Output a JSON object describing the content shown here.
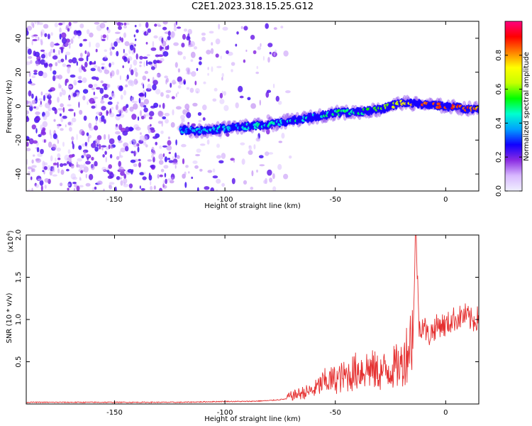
{
  "title": "C2E1.2023.318.15.25.G12",
  "chart_data": [
    {
      "type": "heatmap",
      "xlabel": "Height of straight line (km)",
      "ylabel": "Frequency (Hz)",
      "xlim": [
        -190,
        15
      ],
      "ylim": [
        -50,
        50
      ],
      "xticks": [
        -150,
        -100,
        -50,
        0
      ],
      "yticks": [
        -40,
        -20,
        0,
        20,
        40
      ],
      "colorbar": {
        "label": "Normalized spectral amplitude",
        "range": [
          0.0,
          1.0
        ],
        "ticks": [
          0.0,
          0.2,
          0.4,
          0.6,
          0.8
        ],
        "colormap": [
          "#f0f0ff",
          "#d8b8ff",
          "#8a2be2",
          "#1000ff",
          "#00a0ff",
          "#00ffd0",
          "#00ff00",
          "#c8ff00",
          "#ffff00",
          "#ff8000",
          "#ff0000",
          "#ff0080"
        ]
      },
      "track": {
        "x": [
          -120,
          -110,
          -100,
          -90,
          -80,
          -70,
          -60,
          -50,
          -40,
          -30,
          -20,
          -10,
          0,
          10,
          15
        ],
        "y": [
          -14,
          -14.5,
          -13,
          -12,
          -11,
          -8.5,
          -6.5,
          -4,
          -3.5,
          -2,
          2,
          1,
          0,
          -1.5,
          -1.5
        ],
        "amplitude": [
          0.35,
          0.4,
          0.4,
          0.45,
          0.45,
          0.45,
          0.45,
          0.5,
          0.5,
          0.55,
          0.7,
          0.85,
          0.9,
          0.85,
          0.8
        ]
      }
    },
    {
      "type": "line",
      "xlabel": "Height of straight line (km)",
      "ylabel": "SNR (10 * v/v)",
      "scale_label": "(x10",
      "scale_exponent": "4",
      "scale_close": ")",
      "xlim": [
        -190,
        15
      ],
      "ylim": [
        0,
        2.0
      ],
      "xticks": [
        -150,
        -100,
        -50,
        0
      ],
      "yticks": [
        "0.5",
        "1.0",
        "1.5",
        "2.0"
      ],
      "series": [
        {
          "color": "#e53030",
          "x": [
            -190,
            -150,
            -120,
            -100,
            -90,
            -80,
            -72,
            -65,
            -60,
            -55,
            -50,
            -45,
            -40,
            -35,
            -30,
            -25,
            -20,
            -17,
            -15,
            -13.5,
            -12,
            -10,
            -8,
            -5,
            -2,
            0,
            3,
            6,
            9,
            12,
            15
          ],
          "y": [
            0.02,
            0.02,
            0.02,
            0.03,
            0.03,
            0.04,
            0.06,
            0.1,
            0.12,
            0.2,
            0.22,
            0.25,
            0.3,
            0.32,
            0.28,
            0.32,
            0.35,
            0.5,
            0.65,
            2.0,
            0.9,
            0.95,
            0.8,
            0.9,
            0.95,
            0.92,
            1.0,
            1.02,
            1.05,
            0.98,
            1.02
          ]
        }
      ]
    }
  ]
}
